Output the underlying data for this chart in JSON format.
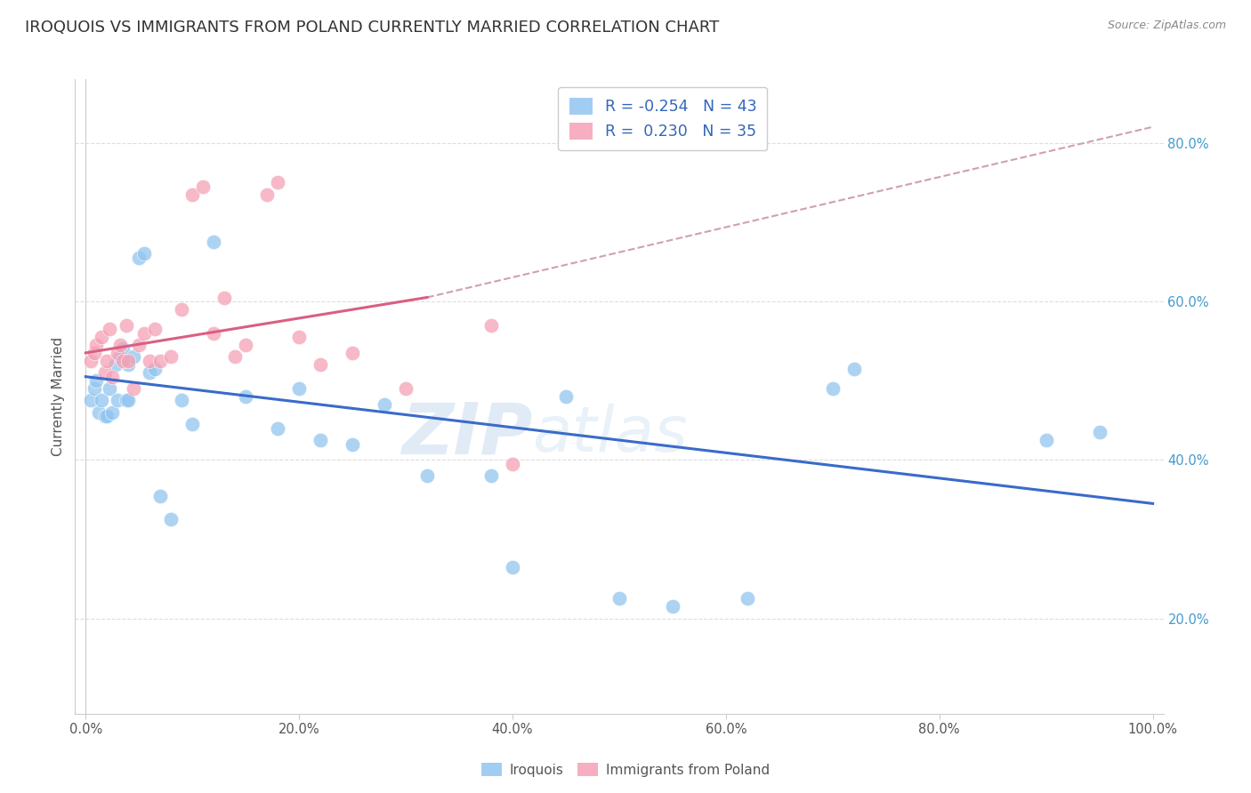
{
  "title": "IROQUOIS VS IMMIGRANTS FROM POLAND CURRENTLY MARRIED CORRELATION CHART",
  "source": "Source: ZipAtlas.com",
  "ylabel": "Currently Married",
  "watermark": "ZIPatlas",
  "blue_color": "#92C5F0",
  "pink_color": "#F5A0B5",
  "blue_line_color": "#3A6BC9",
  "pink_line_color": "#D95F82",
  "dashed_line_color": "#D0A0B0",
  "grid_color": "#DDDDDD",
  "background_color": "#FFFFFF",
  "title_fontsize": 13,
  "axis_label_fontsize": 11,
  "tick_fontsize": 10.5,
  "legend_blue_label": "R = -0.254   N = 43",
  "legend_pink_label": "R =  0.230   N = 35",
  "legend_bottom_labels": [
    "Iroquois",
    "Immigrants from Poland"
  ],
  "blue_x": [
    0.005,
    0.008,
    0.01,
    0.012,
    0.015,
    0.018,
    0.02,
    0.022,
    0.025,
    0.028,
    0.03,
    0.032,
    0.035,
    0.038,
    0.04,
    0.04,
    0.045,
    0.05,
    0.055,
    0.06,
    0.065,
    0.07,
    0.08,
    0.09,
    0.1,
    0.12,
    0.15,
    0.18,
    0.2,
    0.22,
    0.25,
    0.28,
    0.32,
    0.38,
    0.4,
    0.45,
    0.5,
    0.55,
    0.62,
    0.7,
    0.72,
    0.9,
    0.95
  ],
  "blue_y": [
    0.475,
    0.49,
    0.5,
    0.46,
    0.475,
    0.455,
    0.455,
    0.49,
    0.46,
    0.52,
    0.475,
    0.53,
    0.54,
    0.475,
    0.52,
    0.475,
    0.53,
    0.655,
    0.66,
    0.51,
    0.515,
    0.355,
    0.325,
    0.475,
    0.445,
    0.675,
    0.48,
    0.44,
    0.49,
    0.425,
    0.42,
    0.47,
    0.38,
    0.38,
    0.265,
    0.48,
    0.225,
    0.215,
    0.225,
    0.49,
    0.515,
    0.425,
    0.435
  ],
  "pink_x": [
    0.005,
    0.008,
    0.01,
    0.015,
    0.018,
    0.02,
    0.022,
    0.025,
    0.03,
    0.032,
    0.035,
    0.038,
    0.04,
    0.045,
    0.05,
    0.055,
    0.06,
    0.065,
    0.07,
    0.08,
    0.09,
    0.1,
    0.11,
    0.12,
    0.13,
    0.14,
    0.15,
    0.17,
    0.18,
    0.2,
    0.22,
    0.25,
    0.3,
    0.38,
    0.4
  ],
  "pink_y": [
    0.525,
    0.535,
    0.545,
    0.555,
    0.51,
    0.525,
    0.565,
    0.505,
    0.535,
    0.545,
    0.525,
    0.57,
    0.525,
    0.49,
    0.545,
    0.56,
    0.525,
    0.565,
    0.525,
    0.53,
    0.59,
    0.735,
    0.745,
    0.56,
    0.605,
    0.53,
    0.545,
    0.735,
    0.75,
    0.555,
    0.52,
    0.535,
    0.49,
    0.57,
    0.395
  ],
  "blue_line_x0": 0.0,
  "blue_line_x1": 1.0,
  "blue_line_y0": 0.505,
  "blue_line_y1": 0.345,
  "pink_line_x0": 0.0,
  "pink_line_x1": 0.32,
  "pink_line_y0": 0.535,
  "pink_line_y1": 0.605,
  "dash_line_x0": 0.32,
  "dash_line_x1": 1.0,
  "dash_line_y0": 0.605,
  "dash_line_y1": 0.82,
  "xlim": [
    -0.01,
    1.01
  ],
  "ylim": [
    0.08,
    0.88
  ],
  "ytick_vals": [
    0.2,
    0.4,
    0.6,
    0.8
  ],
  "ytick_labels": [
    "20.0%",
    "40.0%",
    "60.0%",
    "80.0%"
  ],
  "xtick_vals": [
    0.0,
    0.2,
    0.4,
    0.6,
    0.8,
    1.0
  ],
  "xtick_labels": [
    "0.0%",
    "20.0%",
    "40.0%",
    "60.0%",
    "80.0%",
    "100.0%"
  ]
}
